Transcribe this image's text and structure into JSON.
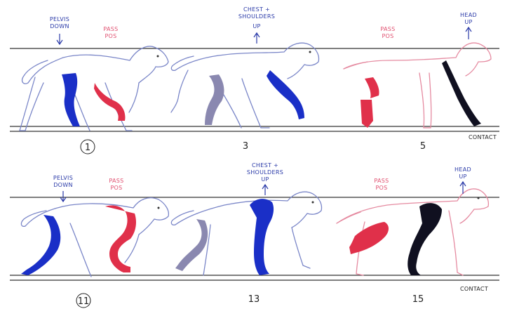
{
  "rows": [
    {
      "frames": [
        {
          "number": "1",
          "circled": true,
          "note_blue": [
            "PELVIS",
            "DOWN"
          ],
          "note_red": [
            "PASS",
            "POS"
          ]
        },
        {
          "number": "3",
          "circled": false,
          "note_blue": [
            "CHEST +",
            "SHOULDERS",
            "UP"
          ]
        },
        {
          "number": "5",
          "circled": false,
          "note_red": [
            "PASS",
            "POS"
          ],
          "note_blue": [
            "HEAD",
            "UP"
          ],
          "corner": "CONTACT"
        }
      ]
    },
    {
      "frames": [
        {
          "number": "11",
          "circled": true,
          "note_blue": [
            "PELVIS",
            "DOWN"
          ],
          "note_red": [
            "PASS",
            "POS"
          ]
        },
        {
          "number": "13",
          "circled": false,
          "note_blue": [
            "CHEST +",
            "SHOULDERS",
            "UP"
          ]
        },
        {
          "number": "15",
          "circled": false,
          "note_red": [
            "PASS",
            "POS"
          ],
          "note_blue": [
            "HEAD",
            "UP"
          ],
          "corner": "CONTACT"
        }
      ]
    }
  ],
  "colors": {
    "outline": "#7a86c8",
    "blue_pencil": "#1a2fc7",
    "red_pencil": "#e0304a",
    "pink_pencil": "#e58aa0",
    "grey_pencil": "#8a88b0",
    "black_pencil": "#101020",
    "guide_line": "#333333",
    "note_blue": "#2a3aa8",
    "note_red": "#e05070"
  }
}
